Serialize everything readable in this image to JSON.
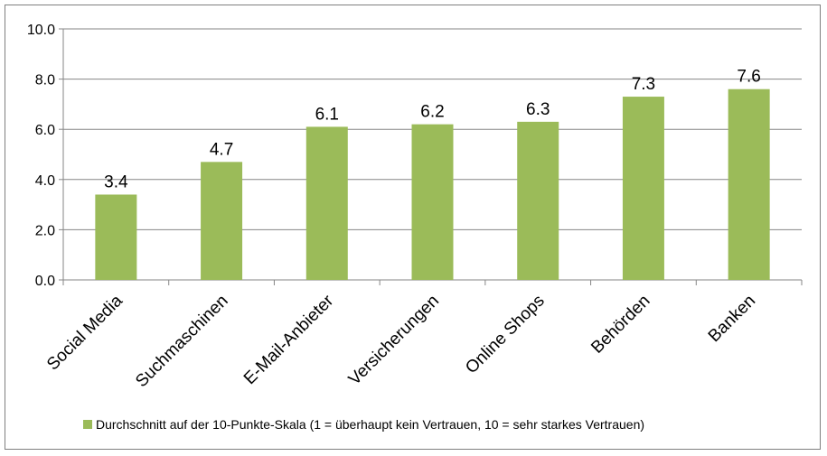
{
  "chart_data": {
    "type": "bar",
    "categories": [
      "Social Media",
      "Suchmaschinen",
      "E-Mail-Anbieter",
      "Versicherungen",
      "Online Shops",
      "Behörden",
      "Banken"
    ],
    "series": [
      {
        "name": "Durchschnitt auf der 10-Punkte-Skala (1 = überhaupt kein Vertrauen, 10 = sehr starkes Vertrauen)",
        "values": [
          3.4,
          4.7,
          6.1,
          6.2,
          6.3,
          7.3,
          7.6
        ],
        "color": "#9bbb59"
      }
    ],
    "data_labels": [
      "3.4",
      "4.7",
      "6.1",
      "6.2",
      "6.3",
      "7.3",
      "7.6"
    ],
    "yticks": [
      "0.0",
      "2.0",
      "4.0",
      "6.0",
      "8.0",
      "10.0"
    ],
    "ylim": [
      0,
      10
    ],
    "grid": true,
    "legend_position": "bottom",
    "title": "",
    "xlabel": "",
    "ylabel": ""
  }
}
